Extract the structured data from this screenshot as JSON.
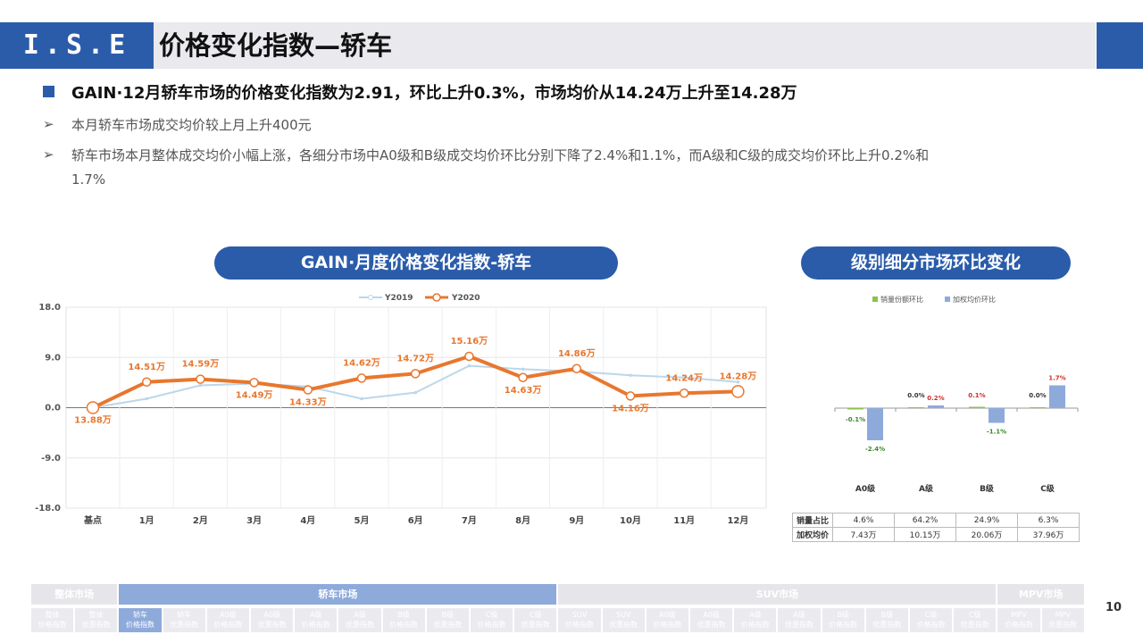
{
  "header": {
    "logo": "I.S.E",
    "title": "价格变化指数—轿车"
  },
  "summary": {
    "headline": "GAIN·12月轿车市场的价格变化指数为2.91，环比上升0.3%，市场均价从14.24万上升至14.28万",
    "bullets": [
      {
        "line1": "本月轿车市场成交均价较上月上升400元",
        "line2": ""
      },
      {
        "line1": "轿车市场本月整体成交均价小幅上涨，各细分市场中A0级和B级成交均价环比分别下降了2.4%和1.1%，而A级和C级的成交均价环比上升0.2%和",
        "line2": "1.7%"
      }
    ]
  },
  "left_panel_title": "GAIN·月度价格变化指数-轿车",
  "right_panel_title": "级别细分市场环比变化",
  "colors": {
    "brand": "#2a5caa",
    "y2019": "#bcd7ea",
    "y2020": "#e8772e",
    "share": "#8bc34a",
    "price": "#8eaadb"
  },
  "chart_data": [
    {
      "type": "line",
      "categories": [
        "基点",
        "1月",
        "2月",
        "3月",
        "4月",
        "5月",
        "6月",
        "7月",
        "8月",
        "9月",
        "10月",
        "11月",
        "12月"
      ],
      "ylim": [
        -18,
        18
      ],
      "yticks": [
        "18.0",
        "9.0",
        "0.0",
        "-9.0",
        "-18.0"
      ],
      "ytick_values": [
        18,
        9,
        0,
        -9,
        -18
      ],
      "grid": true,
      "legend": "top-center",
      "series": [
        {
          "name": "Y2019",
          "values": [
            0,
            1.6,
            4.0,
            4.3,
            3.8,
            1.6,
            2.7,
            7.5,
            6.9,
            6.5,
            5.8,
            5.4,
            4.6
          ]
        },
        {
          "name": "Y2020",
          "values": [
            0,
            4.6,
            5.1,
            4.5,
            3.2,
            5.3,
            6.1,
            9.2,
            5.4,
            7.0,
            2.1,
            2.6,
            2.9
          ],
          "labels": [
            "13.88万",
            "14.51万",
            "14.59万",
            "14.49万",
            "14.33万",
            "14.62万",
            "14.72万",
            "15.16万",
            "14.63万",
            "14.86万",
            "14.16万",
            "14.24万",
            "14.28万"
          ]
        }
      ]
    },
    {
      "type": "bar",
      "categories": [
        "A0级",
        "A级",
        "B级",
        "C级"
      ],
      "legend": "top-center",
      "series": [
        {
          "name": "销量份额环比",
          "values": [
            -0.1,
            0.0,
            0.1,
            0.0
          ],
          "labels": [
            "-0.1%",
            "0.0%",
            "0.1%",
            "0.0%"
          ]
        },
        {
          "name": "加权均价环比",
          "values": [
            -2.4,
            0.2,
            -1.1,
            1.7
          ],
          "labels": [
            "-2.4%",
            "0.2%",
            "-1.1%",
            "1.7%"
          ]
        }
      ]
    }
  ],
  "grade_table": {
    "rows": [
      {
        "header": "销量占比",
        "values": [
          "4.6%",
          "64.2%",
          "24.9%",
          "6.3%"
        ]
      },
      {
        "header": "加权均价",
        "values": [
          "7.43万",
          "10.15万",
          "20.06万",
          "37.96万"
        ]
      }
    ]
  },
  "nav": {
    "sections": [
      {
        "label": "整体市场",
        "active": false
      },
      {
        "label": "轿车市场",
        "active": true
      },
      {
        "label": "SUV市场",
        "active": false
      },
      {
        "label": "MPV市场",
        "active": false
      }
    ],
    "items": [
      [
        "整体",
        "价格指数"
      ],
      [
        "整体",
        "优惠指数"
      ],
      [
        "轿车",
        "价格指数"
      ],
      [
        "轿车",
        "优惠指数"
      ],
      [
        "A0级",
        "价格指数"
      ],
      [
        "A0级",
        "优惠指数"
      ],
      [
        "A级",
        "价格指数"
      ],
      [
        "A级",
        "优惠指数"
      ],
      [
        "B级",
        "价格指数"
      ],
      [
        "B级",
        "优惠指数"
      ],
      [
        "C级",
        "价格指数"
      ],
      [
        "C级",
        "优惠指数"
      ],
      [
        "SUV",
        "价格指数"
      ],
      [
        "SUV",
        "优惠指数"
      ],
      [
        "A0级",
        "价格指数"
      ],
      [
        "A0级",
        "优惠指数"
      ],
      [
        "A级",
        "价格指数"
      ],
      [
        "A级",
        "优惠指数"
      ],
      [
        "B级",
        "价格指数"
      ],
      [
        "B级",
        "优惠指数"
      ],
      [
        "C级",
        "价格指数"
      ],
      [
        "C级",
        "优惠指数"
      ],
      [
        "MPV",
        "价格指数"
      ],
      [
        "MPV",
        "优惠指数"
      ]
    ],
    "active_item": 2
  },
  "page_number": "10"
}
